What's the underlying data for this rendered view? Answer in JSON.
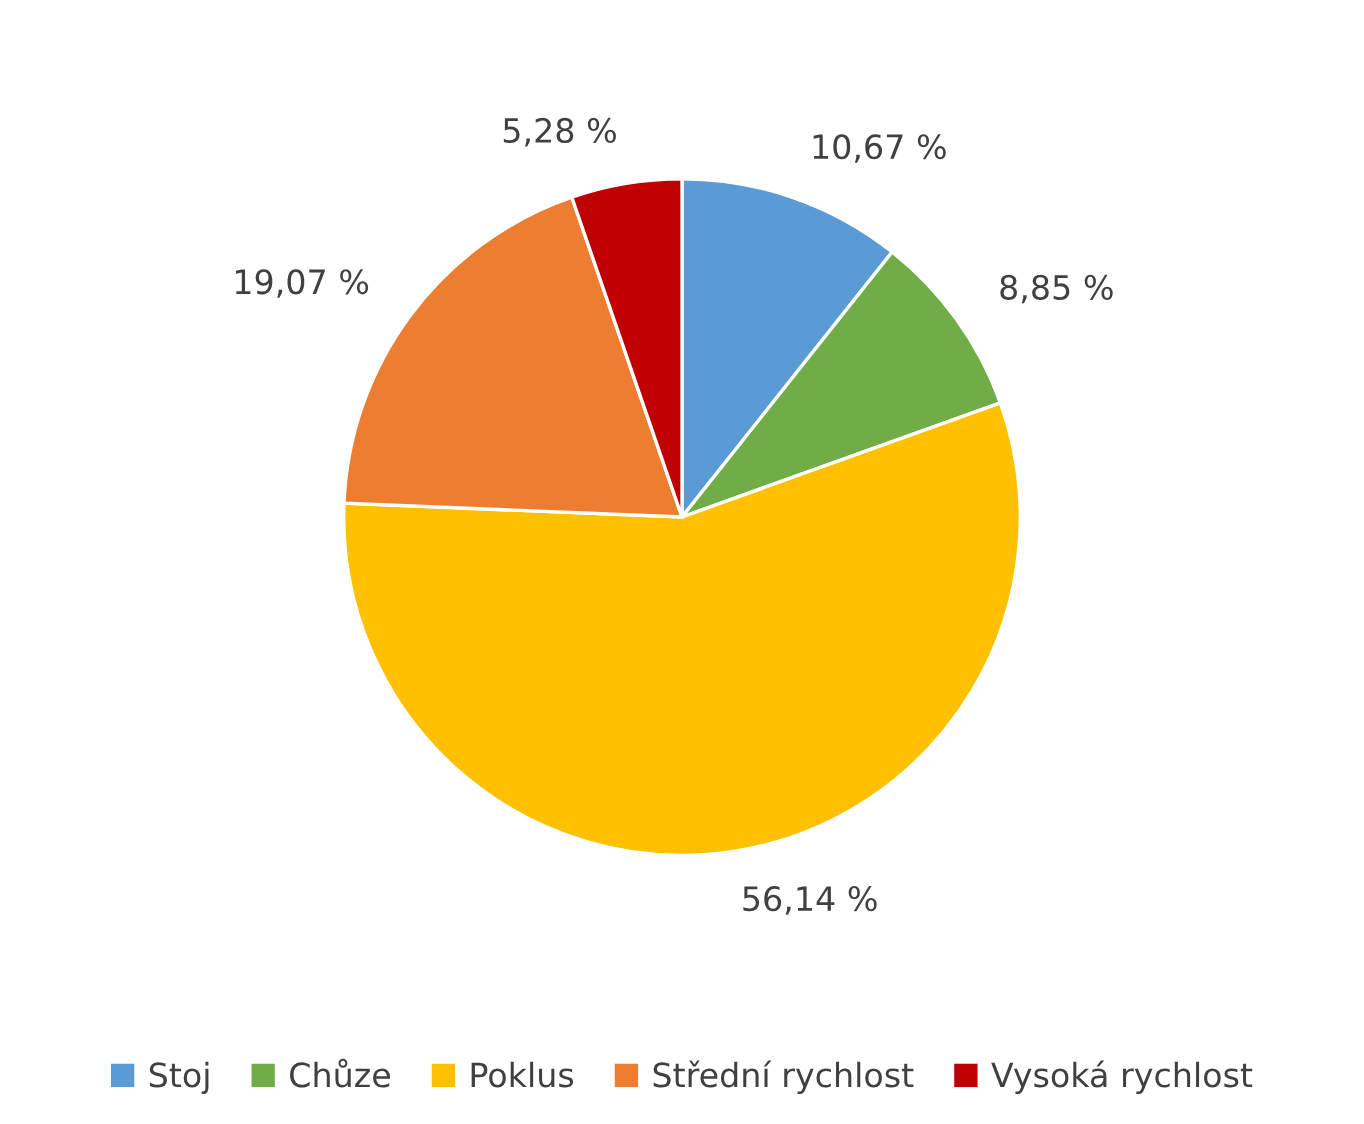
{
  "chart_data": {
    "type": "pie",
    "categories": [
      "Stoj",
      "Chůze",
      "Poklus",
      "Střední rychlost",
      "Vysoká rychlost"
    ],
    "values": [
      10.67,
      8.85,
      56.14,
      19.07,
      5.28
    ],
    "value_labels": [
      "10,67 %",
      "8,85 %",
      "56,14 %",
      "19,07 %",
      "5,28 %"
    ],
    "colors": [
      "#5b9bd5",
      "#70ad47",
      "#ffc000",
      "#ed7d31",
      "#c00000"
    ],
    "legend": "bottom"
  }
}
